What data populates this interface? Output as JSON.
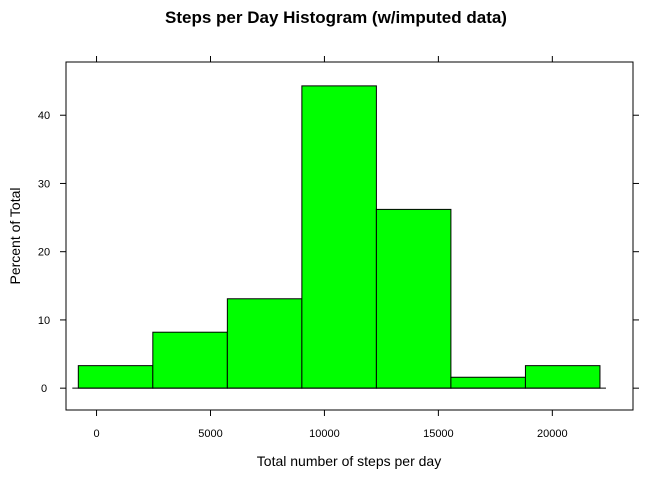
{
  "chart_data": {
    "type": "bar",
    "title": "Steps per Day Histogram (w/imputed data)",
    "xlabel": "Total number of steps per day",
    "ylabel": "Percent of Total",
    "xlim": [
      -1340,
      23540
    ],
    "ylim": [
      -3.2,
      47.8
    ],
    "x_ticks": [
      0,
      5000,
      10000,
      15000,
      20000
    ],
    "y_ticks": [
      0,
      10,
      20,
      30,
      40
    ],
    "bar_color": "#00ff00",
    "bins": [
      {
        "x0": -800,
        "x1": 2470,
        "value": 3.3
      },
      {
        "x0": 2470,
        "x1": 5740,
        "value": 8.2
      },
      {
        "x0": 5740,
        "x1": 9010,
        "value": 13.1
      },
      {
        "x0": 9010,
        "x1": 12280,
        "value": 44.3
      },
      {
        "x0": 12280,
        "x1": 15550,
        "value": 26.2
      },
      {
        "x0": 15550,
        "x1": 18820,
        "value": 1.6
      },
      {
        "x0": 18820,
        "x1": 22090,
        "value": 3.3
      }
    ]
  }
}
